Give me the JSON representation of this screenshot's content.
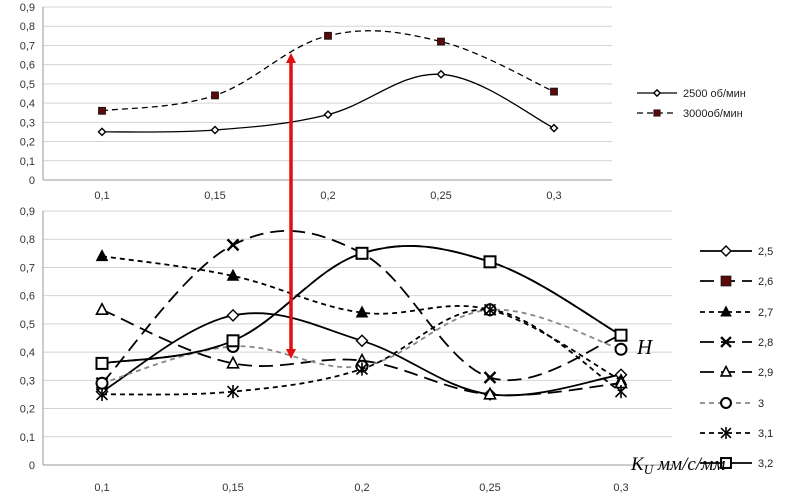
{
  "chart_data": [
    {
      "type": "line",
      "categories": [
        "0,1",
        "0,15",
        "0,2",
        "0,25",
        "0,3"
      ],
      "y_ticks": [
        "0",
        "0,1",
        "0,2",
        "0,3",
        "0,4",
        "0,5",
        "0,6",
        "0,7",
        "0,8",
        "0,9"
      ],
      "ylim": [
        0,
        0.9
      ],
      "grid": true,
      "legend_position": "right",
      "series": [
        {
          "name": "2500 об/мин",
          "values": [
            0.25,
            0.26,
            0.34,
            0.55,
            0.27
          ],
          "color": "#000000",
          "dash": "solid",
          "marker": "diamond-open"
        },
        {
          "name": "3000об/мин",
          "values": [
            0.36,
            0.44,
            0.75,
            0.72,
            0.46
          ],
          "color": "#000000",
          "dash": "dashed",
          "marker": "square-filled"
        }
      ]
    },
    {
      "type": "line",
      "categories": [
        "0,1",
        "0,15",
        "0,2",
        "0,25",
        "0,3"
      ],
      "y_ticks": [
        "0",
        "0,1",
        "0,2",
        "0,3",
        "0,4",
        "0,5",
        "0,6",
        "0,7",
        "0,8",
        "0,9"
      ],
      "ylim": [
        0,
        0.9
      ],
      "grid": true,
      "legend_position": "right",
      "xlabel_main": "K",
      "xlabel_sub": "U",
      "xlabel_rest": " мм/с/мм",
      "annotation": "H",
      "series": [
        {
          "name": "2,5",
          "values": [
            0.26,
            0.53,
            0.44,
            0.25,
            0.32
          ],
          "color": "#000000",
          "dash": "solid",
          "marker": "diamond-open"
        },
        {
          "name": "2,6",
          "values": [
            0.36,
            0.44,
            0.75,
            0.72,
            0.46
          ],
          "color": "#000000",
          "dash": "long-dash",
          "marker": "square-filled"
        },
        {
          "name": "2,7",
          "values": [
            0.74,
            0.67,
            0.54,
            0.55,
            0.3
          ],
          "color": "#000000",
          "dash": "short-dash",
          "marker": "triangle-filled"
        },
        {
          "name": "2,8",
          "values": [
            0.29,
            0.78,
            0.75,
            0.31,
            0.46
          ],
          "color": "#000000",
          "dash": "long-dash",
          "marker": "x"
        },
        {
          "name": "2,9",
          "values": [
            0.55,
            0.36,
            0.37,
            0.25,
            0.29
          ],
          "color": "#000000",
          "dash": "long-dash",
          "marker": "triangle-open"
        },
        {
          "name": "3",
          "values": [
            0.29,
            0.42,
            0.35,
            0.55,
            0.41
          ],
          "color": "#888888",
          "dash": "short-dash",
          "marker": "circle-open"
        },
        {
          "name": "3,1",
          "values": [
            0.25,
            0.26,
            0.34,
            0.55,
            0.26
          ],
          "color": "#000000",
          "dash": "short-dash",
          "marker": "star"
        },
        {
          "name": "3,2",
          "values": [
            0.36,
            0.44,
            0.75,
            0.72,
            0.46
          ],
          "color": "#000000",
          "dash": "solid",
          "marker": "square-open"
        }
      ]
    }
  ],
  "arrow": {
    "color": "#e01010"
  }
}
